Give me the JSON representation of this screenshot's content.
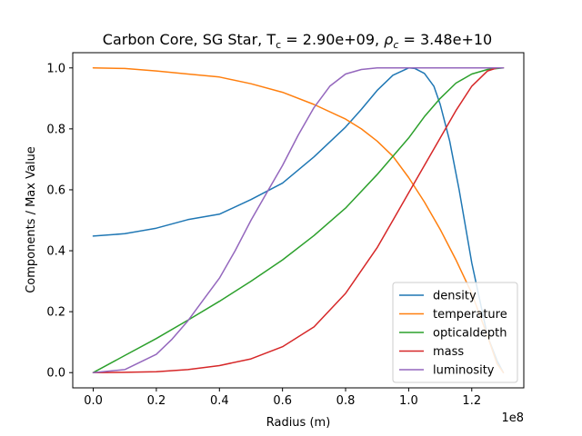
{
  "chart_data": {
    "type": "line",
    "title_main": "Carbon Core, SG Star, T",
    "title_temp_sub": "c",
    "title_temp_value": " = 2.90e+09, ",
    "title_rho_symbol": "ρ",
    "title_rho_sub": "c",
    "title_rho_value": " = 3.48e+10",
    "xlabel": "Radius (m)",
    "ylabel": "Components / Max Value",
    "x_offset_label": "1e8",
    "x_scale": 100000000,
    "xlim": [
      -0.065,
      1.365
    ],
    "ylim": [
      -0.05,
      1.05
    ],
    "xticks": [
      0.0,
      0.2,
      0.4,
      0.6,
      0.8,
      1.0,
      1.2
    ],
    "xtick_labels": [
      "0.0",
      "0.2",
      "0.4",
      "0.6",
      "0.8",
      "1.0",
      "1.2"
    ],
    "yticks": [
      0.0,
      0.2,
      0.4,
      0.6,
      0.8,
      1.0
    ],
    "ytick_labels": [
      "0.0",
      "0.2",
      "0.4",
      "0.6",
      "0.8",
      "1.0"
    ],
    "grid": false,
    "legend_position": "lower-right",
    "series": [
      {
        "name": "density",
        "color": "#1f77b4",
        "x": [
          0.0,
          0.1,
          0.2,
          0.3,
          0.4,
          0.5,
          0.6,
          0.7,
          0.8,
          0.85,
          0.9,
          0.95,
          1.0,
          1.02,
          1.05,
          1.08,
          1.1,
          1.13,
          1.16,
          1.2,
          1.25,
          1.28,
          1.3
        ],
        "y": [
          0.448,
          0.456,
          0.474,
          0.502,
          0.52,
          0.568,
          0.622,
          0.708,
          0.806,
          0.864,
          0.926,
          0.976,
          1.0,
          0.998,
          0.982,
          0.94,
          0.88,
          0.76,
          0.6,
          0.36,
          0.12,
          0.04,
          0.0
        ]
      },
      {
        "name": "temperature",
        "color": "#ff7f0e",
        "x": [
          0.0,
          0.1,
          0.2,
          0.3,
          0.4,
          0.5,
          0.6,
          0.7,
          0.8,
          0.85,
          0.9,
          0.95,
          1.0,
          1.05,
          1.1,
          1.15,
          1.2,
          1.25,
          1.28,
          1.3
        ],
        "y": [
          1.0,
          0.998,
          0.99,
          0.98,
          0.97,
          0.948,
          0.92,
          0.88,
          0.832,
          0.8,
          0.76,
          0.71,
          0.64,
          0.56,
          0.47,
          0.37,
          0.26,
          0.12,
          0.03,
          0.0
        ]
      },
      {
        "name": "opticaldepth",
        "color": "#2ca02c",
        "x": [
          0.0,
          0.1,
          0.2,
          0.3,
          0.4,
          0.5,
          0.6,
          0.7,
          0.8,
          0.9,
          1.0,
          1.05,
          1.1,
          1.15,
          1.2,
          1.25,
          1.3
        ],
        "y": [
          0.0,
          0.056,
          0.112,
          0.172,
          0.234,
          0.3,
          0.37,
          0.45,
          0.54,
          0.65,
          0.77,
          0.84,
          0.9,
          0.95,
          0.98,
          0.995,
          1.0
        ]
      },
      {
        "name": "mass",
        "color": "#d62728",
        "x": [
          0.0,
          0.1,
          0.2,
          0.3,
          0.4,
          0.5,
          0.6,
          0.7,
          0.8,
          0.9,
          0.95,
          1.0,
          1.05,
          1.1,
          1.15,
          1.2,
          1.25,
          1.28,
          1.3
        ],
        "y": [
          0.0,
          0.001,
          0.003,
          0.01,
          0.023,
          0.045,
          0.085,
          0.15,
          0.26,
          0.41,
          0.5,
          0.59,
          0.68,
          0.77,
          0.86,
          0.94,
          0.99,
          1.0,
          1.0
        ]
      },
      {
        "name": "luminosity",
        "color": "#9467bd",
        "x": [
          0.0,
          0.1,
          0.2,
          0.25,
          0.3,
          0.35,
          0.4,
          0.45,
          0.5,
          0.55,
          0.6,
          0.65,
          0.7,
          0.75,
          0.8,
          0.85,
          0.9,
          0.95,
          1.0,
          1.1,
          1.2,
          1.3
        ],
        "y": [
          0.0,
          0.01,
          0.06,
          0.11,
          0.17,
          0.24,
          0.31,
          0.4,
          0.5,
          0.59,
          0.68,
          0.78,
          0.87,
          0.94,
          0.98,
          0.995,
          1.0,
          1.0,
          1.0,
          1.0,
          1.0,
          1.0
        ]
      }
    ]
  }
}
